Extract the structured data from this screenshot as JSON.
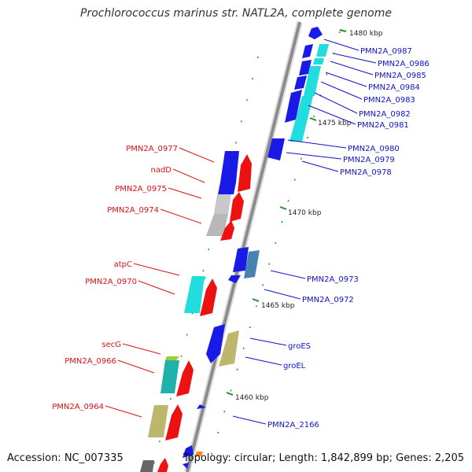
{
  "title": "Prochlorococcus marinus str. NATL2A, complete genome",
  "footer": {
    "accession": "Accession: NC_007335",
    "summary": "Topology: circular; Length: 1,842,899 bp; Genes: 2,205"
  },
  "colors": {
    "backbone": "#8c8c8c",
    "tick_major": "#228b22",
    "tick_minor": "#228b22",
    "label_left": "#dd1111",
    "label_right": "#1111cc",
    "blue": "#1a1ae6",
    "cyan": "#22dddd",
    "red": "#ee1111",
    "grey": "#b8b8b8",
    "khaki": "#bdb76b",
    "steel": "#4682b4",
    "yellowgreen": "#9acd32",
    "orange": "#ff8c00",
    "darkgrey": "#666666",
    "teal": "#20b2aa"
  },
  "scale_labels": [
    "1480 kbp",
    "1475 kbp",
    "1470 kbp",
    "1465 kbp",
    "1460 kbp"
  ],
  "genes_left": [
    {
      "label": "PMN2A_0977",
      "color": "red"
    },
    {
      "label": "nadD",
      "color": "red"
    },
    {
      "label": "PMN2A_0975",
      "color": "red"
    },
    {
      "label": "PMN2A_0974",
      "color": "red"
    },
    {
      "label": "atpC",
      "color": "red"
    },
    {
      "label": "PMN2A_0970",
      "color": "red"
    },
    {
      "label": "secG",
      "color": "red"
    },
    {
      "label": "PMN2A_0966",
      "color": "red"
    },
    {
      "label": "PMN2A_0964",
      "color": "red"
    }
  ],
  "genes_right": [
    {
      "label": "PMN2A_0987",
      "color": "blue"
    },
    {
      "label": "PMN2A_0986",
      "color": "blue"
    },
    {
      "label": "PMN2A_0985",
      "color": "blue"
    },
    {
      "label": "PMN2A_0984",
      "color": "blue"
    },
    {
      "label": "PMN2A_0983",
      "color": "blue"
    },
    {
      "label": "PMN2A_0982",
      "color": "blue"
    },
    {
      "label": "PMN2A_0981",
      "color": "blue"
    },
    {
      "label": "PMN2A_0980",
      "color": "blue"
    },
    {
      "label": "PMN2A_0979",
      "color": "blue"
    },
    {
      "label": "PMN2A_0978",
      "color": "blue"
    },
    {
      "label": "PMN2A_0973",
      "color": "blue"
    },
    {
      "label": "PMN2A_0972",
      "color": "blue"
    },
    {
      "label": "groES",
      "color": "blue"
    },
    {
      "label": "groEL",
      "color": "blue"
    },
    {
      "label": "PMN2A_2166",
      "color": "blue"
    }
  ]
}
